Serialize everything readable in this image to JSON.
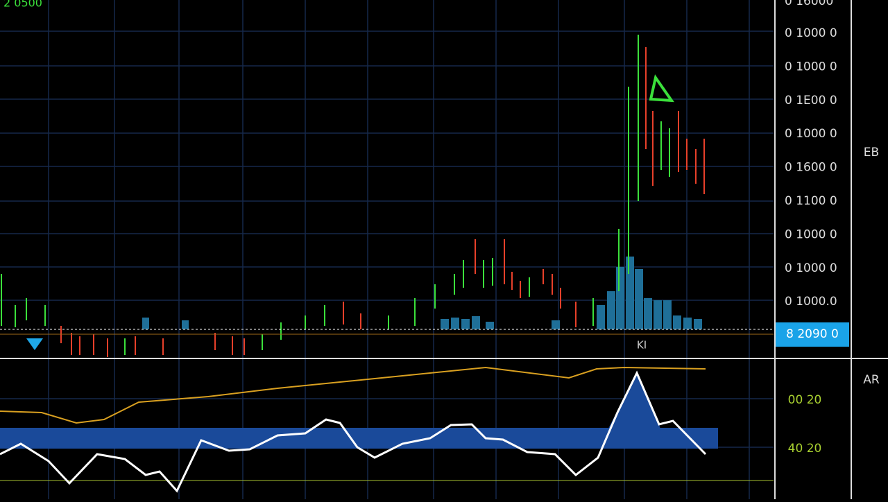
{
  "header": {
    "label": "2 0500"
  },
  "price_axis": {
    "labels": [
      "0 16000",
      "0 1000 0",
      "0 1000 0",
      "0 1E00 0",
      "0 1000 0",
      "0 1600 0",
      "0 1100 0",
      "0 1000 0",
      "0 1000 0",
      "0 1000.0"
    ],
    "current_price": "8 2090 0",
    "tag": "EB"
  },
  "chart": {
    "marker_label": "KI"
  },
  "indicator": {
    "tag": "AR",
    "labels": [
      "00 20",
      "40 20"
    ]
  }
}
